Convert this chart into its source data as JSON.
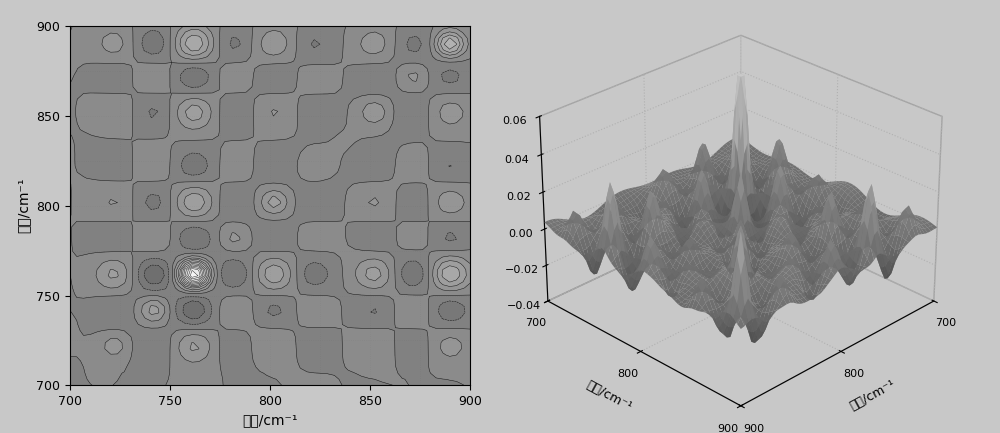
{
  "wavenumber_min": 700,
  "wavenumber_max": 900,
  "xlabel": "波数/cm⁻¹",
  "ylabel": "波数/cm⁻¹",
  "contour_levels": 25,
  "background_color": "#c8c8c8",
  "yticks_left": [
    700,
    750,
    800,
    850,
    900
  ],
  "xticks_bottom": [
    700,
    750,
    800,
    850,
    900
  ],
  "zlim": [
    -0.04,
    0.06
  ],
  "zticks": [
    -0.04,
    -0.02,
    0.0,
    0.02,
    0.04,
    0.06
  ],
  "n_grid": 60,
  "peak_positions": [
    722,
    742,
    762,
    782,
    802,
    822,
    852,
    872,
    890
  ],
  "peak_strengths": [
    0.02,
    0.025,
    0.055,
    0.018,
    0.025,
    0.015,
    0.022,
    0.018,
    0.035
  ]
}
